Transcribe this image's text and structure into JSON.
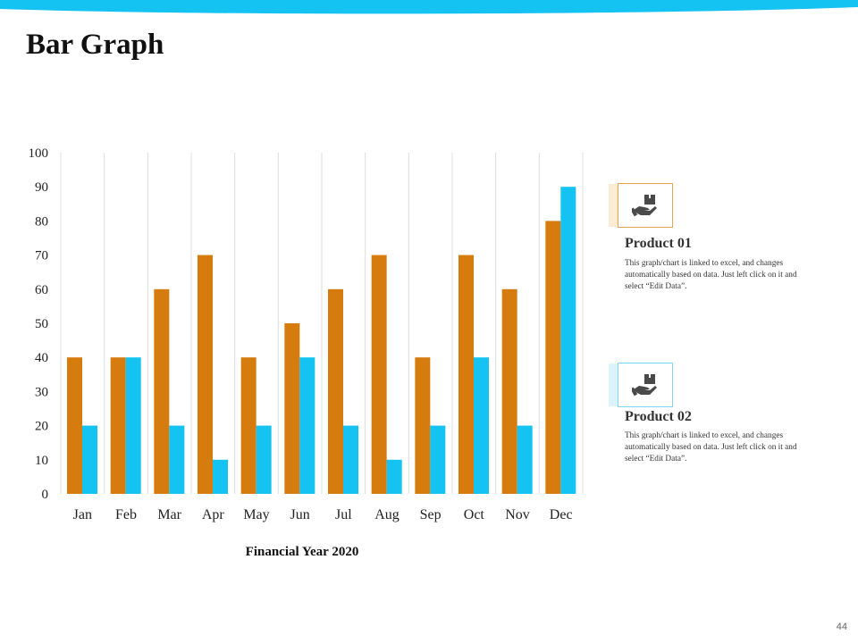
{
  "slide": {
    "title": "Bar Graph",
    "page_number": "44"
  },
  "colors": {
    "product1": "#D67C0E",
    "product2": "#14C3F2",
    "wave": "#14C3F2"
  },
  "legend": [
    {
      "title": "Product 01",
      "description": "This graph/chart is linked to excel, and changes automatically based on data. Just left click on it and select “Edit Data”.",
      "icon": "hand-holding-box-icon"
    },
    {
      "title": "Product 02",
      "description": "This graph/chart is linked to excel, and changes automatically based on data. Just left click on it and select “Edit Data”.",
      "icon": "hand-holding-box-icon"
    }
  ],
  "chart_data": {
    "type": "bar",
    "title": "",
    "xlabel": "Financial Year 2020",
    "ylabel": "",
    "categories": [
      "Jan",
      "Feb",
      "Mar",
      "Apr",
      "May",
      "Jun",
      "Jul",
      "Aug",
      "Sep",
      "Oct",
      "Nov",
      "Dec"
    ],
    "series": [
      {
        "name": "Product 01",
        "values": [
          40,
          40,
          60,
          70,
          40,
          50,
          60,
          70,
          40,
          70,
          60,
          80
        ]
      },
      {
        "name": "Product 02",
        "values": [
          20,
          40,
          20,
          10,
          20,
          40,
          20,
          10,
          20,
          40,
          20,
          90
        ]
      }
    ],
    "ylim": [
      0,
      100
    ],
    "yticks": [
      0,
      10,
      20,
      30,
      40,
      50,
      60,
      70,
      80,
      90,
      100
    ],
    "grid": "vertical",
    "legend_position": "right"
  }
}
